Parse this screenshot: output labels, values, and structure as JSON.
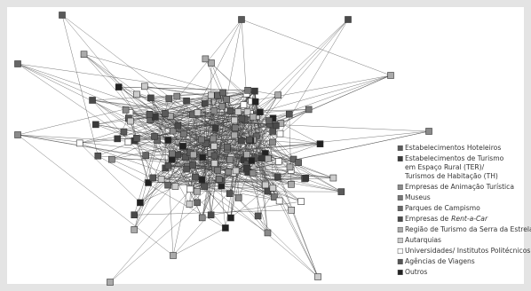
{
  "legend": {
    "items": [
      {
        "lines": [
          "Estabelecimentos Hoteleiros"
        ],
        "color": "#5a5a5a"
      },
      {
        "lines": [
          "Estabelecimentos de Turismo",
          "em Espaço Rural (TER)/",
          "Turismos de Habitação (TH)"
        ],
        "color": "#3a3a3a"
      },
      {
        "lines": [
          "Empresas de Animação Turística"
        ],
        "color": "#8a8a8a"
      },
      {
        "lines": [
          "Museus"
        ],
        "color": "#777777"
      },
      {
        "lines": [
          "Parques de Campismo"
        ],
        "color": "#666666"
      },
      {
        "lines": [
          "Empresas de"
        ],
        "italic": "Rent-a-Car",
        "color": "#4a4a4a"
      },
      {
        "lines": [
          "Região de Turismo da Serra da Estrela"
        ],
        "color": "#aaaaaa"
      },
      {
        "lines": [
          "Autarquias"
        ],
        "color": "#cccccc"
      },
      {
        "lines": [
          "Universidades/ Institutos Politécnicos"
        ],
        "color": "#ffffff"
      },
      {
        "lines": [
          "Agências de Viagens"
        ],
        "color": "#555555"
      },
      {
        "lines": [
          "Outros"
        ],
        "color": "#222222"
      }
    ]
  }
}
